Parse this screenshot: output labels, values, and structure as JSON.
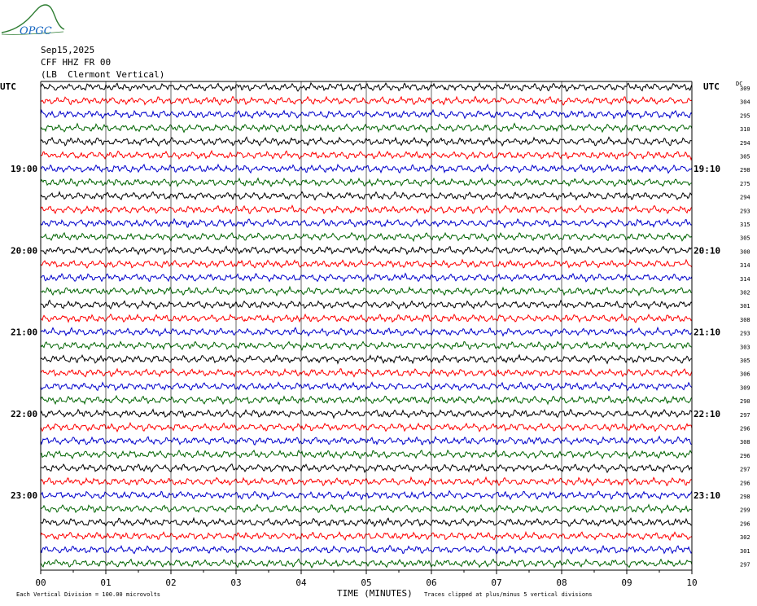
{
  "logo": {
    "text": "OPGC",
    "color": "#2e7d32",
    "text_color": "#1565c0"
  },
  "header": {
    "date": "Sep15,2025",
    "station": "CFF HHZ FR 00",
    "location": "(LB  Clermont Vertical)"
  },
  "labels": {
    "utc_left": "UTC",
    "utc_right": "UTC",
    "dc": "DC",
    "footer_left": "Each Vertical Division =  100.00 microvolts",
    "footer_center": "TIME (MINUTES)",
    "footer_right": "Traces clipped at plus/minus 5 vertical divisions"
  },
  "chart_data": {
    "type": "line",
    "xlabel": "TIME (MINUTES)",
    "x_ticks": [
      "00",
      "01",
      "02",
      "03",
      "04",
      "05",
      "06",
      "07",
      "08",
      "09",
      "10"
    ],
    "xlim": [
      0,
      10
    ],
    "grid": true,
    "trace_colors": [
      "#000000",
      "#ff0000",
      "#0000cc",
      "#006400"
    ],
    "left_hour_labels": [
      "19:00",
      "20:00",
      "21:00",
      "22:00",
      "23:00"
    ],
    "right_hour_labels": [
      "19:10",
      "20:10",
      "21:10",
      "22:10",
      "23:10"
    ],
    "dc_offsets": [
      309,
      304,
      295,
      310,
      294,
      305,
      298,
      275,
      294,
      293,
      315,
      305,
      300,
      314,
      314,
      302,
      301,
      308,
      293,
      303,
      305,
      306,
      309,
      290,
      297,
      296,
      308,
      296,
      297,
      296,
      298,
      299,
      296,
      302,
      301,
      297
    ]
  }
}
